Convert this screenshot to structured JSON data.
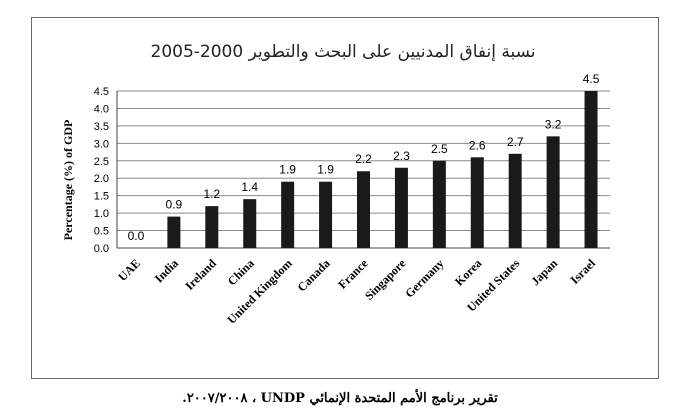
{
  "chart_data": {
    "type": "bar",
    "title": "نسبة إنفاق المدنيين على البحث والتطوير 2000-2005",
    "ylabel": "Percentage (%) of GDP",
    "xlabel": "",
    "categories": [
      "UAE",
      "India",
      "Ireland",
      "China",
      "United Kingdom",
      "Canada",
      "France",
      "Singapore",
      "Germany",
      "Korea",
      "United States",
      "Japan",
      "Israel"
    ],
    "values": [
      0.0,
      0.9,
      1.2,
      1.4,
      1.9,
      1.9,
      2.2,
      2.3,
      2.5,
      2.6,
      2.7,
      3.2,
      4.5
    ],
    "data_labels": [
      "0.0",
      "0.9",
      "1.2",
      "1.4",
      "1.9",
      "1.9",
      "2.2",
      "2.3",
      "2.5",
      "2.6",
      "2.7",
      "3.2",
      "4.5"
    ],
    "yticks": [
      "0.0",
      "0.5",
      "1.0",
      "1.5",
      "2.0",
      "2.5",
      "3.0",
      "3.5",
      "4.0",
      "4.5"
    ],
    "ylim": [
      0,
      4.5
    ],
    "grid": true,
    "bar_color": "#1a1a1a"
  },
  "caption": "تقرير برنامج الأمم المتحدة الإنمائي UNDP ، ٢٠٠٧/٢٠٠٨."
}
